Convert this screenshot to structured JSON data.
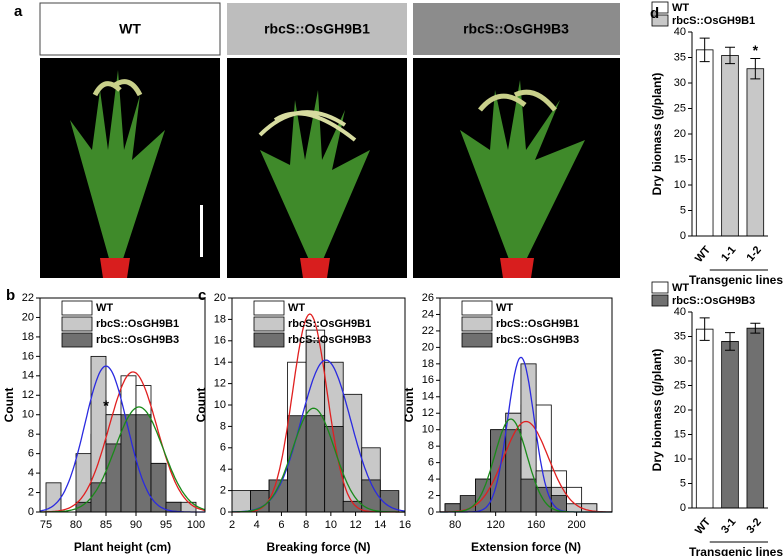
{
  "photos": {
    "panel": "a",
    "labels": [
      "WT",
      "rbcS::OsGH9B1",
      "rbcS::OsGH9B3"
    ]
  },
  "chart_data": [
    {
      "type": "histogram",
      "panel": "b",
      "xlabel": "Plant height (cm)",
      "ylabel": "Count",
      "bins": [
        75,
        77.5,
        80,
        82.5,
        85,
        87.5,
        90,
        92.5,
        95,
        97.5,
        100
      ],
      "xlim": [
        74,
        101.5
      ],
      "xticks": [
        75,
        80,
        85,
        90,
        95,
        100
      ],
      "ylim": [
        0,
        22
      ],
      "yticks": [
        0,
        2,
        4,
        6,
        8,
        10,
        12,
        14,
        16,
        18,
        20,
        22
      ],
      "legend": "upper left",
      "annotations": [
        {
          "text": "*",
          "x": 85,
          "color": "#2a2ae0"
        }
      ],
      "series": [
        {
          "name": "WT",
          "color": "#e02020",
          "fill": "#ffffff",
          "values": [
            0,
            0,
            1,
            8,
            10,
            14,
            13,
            5,
            1,
            0
          ],
          "fit": {
            "mean": 89.5,
            "sd": 4,
            "peak": 14.4
          }
        },
        {
          "name": "rbcS::OsGH9B1",
          "color": "#2a2ae0",
          "fill": "#c8c8c8",
          "values": [
            3,
            0,
            6,
            16,
            10,
            3,
            0,
            5,
            0,
            1
          ],
          "fit": {
            "mean": 85,
            "sd": 3.5,
            "peak": 15
          }
        },
        {
          "name": "rbcS::OsGH9B3",
          "color": "#1a8a1a",
          "fill": "#707070",
          "values": [
            0,
            0,
            1,
            3,
            7,
            10,
            10,
            5,
            1,
            0
          ],
          "fit": {
            "mean": 90.5,
            "sd": 4,
            "peak": 10.8
          }
        }
      ]
    },
    {
      "type": "histogram",
      "panel": "c",
      "xlabel": "Breaking force (N)",
      "ylabel": "Count",
      "bins": [
        2,
        3.5,
        5,
        6.5,
        8,
        9.5,
        11,
        12.5,
        14,
        15.5
      ],
      "xlim": [
        2,
        16
      ],
      "xticks": [
        2,
        4,
        6,
        8,
        10,
        12,
        14,
        16
      ],
      "ylim": [
        0,
        20
      ],
      "yticks": [
        0,
        2,
        4,
        6,
        8,
        10,
        12,
        14,
        16,
        18,
        20
      ],
      "legend": "upper left",
      "series": [
        {
          "name": "WT",
          "color": "#e02020",
          "fill": "#ffffff",
          "values": [
            0,
            2,
            2,
            14,
            17,
            5,
            2,
            1,
            0
          ],
          "fit": {
            "mean": 8.3,
            "sd": 1.4,
            "peak": 18.5
          }
        },
        {
          "name": "rbcS::OsGH9B1",
          "color": "#2a2ae0",
          "fill": "#c8c8c8",
          "values": [
            2,
            0,
            3,
            8,
            16,
            14,
            11,
            6,
            0
          ],
          "fit": {
            "mean": 9.6,
            "sd": 2.0,
            "peak": 14.2
          }
        },
        {
          "name": "rbcS::OsGH9B3",
          "color": "#1a8a1a",
          "fill": "#707070",
          "values": [
            0,
            2,
            3,
            9,
            9,
            8,
            1,
            3,
            2
          ],
          "fit": {
            "mean": 8.6,
            "sd": 1.7,
            "peak": 9.7
          }
        }
      ]
    },
    {
      "type": "histogram",
      "xlabel": "Extension force (N)",
      "ylabel": "Count",
      "bins": [
        70,
        85,
        100,
        115,
        130,
        145,
        160,
        175,
        190,
        205,
        220
      ],
      "xlim": [
        65,
        235
      ],
      "xticks": [
        80,
        120,
        160,
        200
      ],
      "ylim": [
        0,
        26
      ],
      "yticks": [
        0,
        2,
        4,
        6,
        8,
        10,
        12,
        14,
        16,
        18,
        20,
        22,
        24,
        26
      ],
      "legend": "upper left",
      "series": [
        {
          "name": "WT",
          "color": "#e02020",
          "fill": "#ffffff",
          "values": [
            1,
            1,
            2,
            8,
            12,
            13,
            13,
            5,
            3,
            1
          ],
          "fit": {
            "mean": 150,
            "sd": 22,
            "peak": 11
          }
        },
        {
          "name": "rbcS::OsGH9B1",
          "color": "#2a2ae0",
          "fill": "#c8c8c8",
          "values": [
            1,
            1,
            4,
            10,
            12,
            18,
            5,
            3,
            1,
            1
          ],
          "fit": {
            "mean": 145,
            "sd": 13,
            "peak": 18.8
          }
        },
        {
          "name": "rbcS::OsGH9B3",
          "color": "#1a8a1a",
          "fill": "#707070",
          "values": [
            1,
            2,
            4,
            10,
            10,
            4,
            3,
            2,
            0,
            0
          ],
          "fit": {
            "mean": 135,
            "sd": 16,
            "peak": 11.3
          }
        }
      ]
    },
    {
      "type": "bar",
      "panel": "d",
      "xlabel": "Transgenic lines",
      "ylabel": "Dry biomass (g/plant)",
      "categories": [
        "WT",
        "1-1",
        "1-2"
      ],
      "values": [
        36.5,
        35.4,
        32.8
      ],
      "errors": [
        2.3,
        1.6,
        2.0
      ],
      "colors": [
        "#ffffff",
        "#c8c8c8",
        "#c8c8c8"
      ],
      "legend": [
        {
          "name": "WT",
          "color": "#ffffff"
        },
        {
          "name": "rbcS::OsGH9B1",
          "color": "#c8c8c8"
        }
      ],
      "annotations": [
        {
          "text": "*",
          "x": "1-2"
        }
      ],
      "ylim": [
        0,
        40
      ],
      "yticks": [
        0,
        5,
        10,
        15,
        20,
        25,
        30,
        35,
        40
      ]
    },
    {
      "type": "bar",
      "xlabel": "Transgenic lines",
      "ylabel": "Dry biomass (g/plant)",
      "categories": [
        "WT",
        "3-1",
        "3-2"
      ],
      "values": [
        36.5,
        34,
        36.7
      ],
      "errors": [
        2.3,
        1.8,
        1.0
      ],
      "colors": [
        "#ffffff",
        "#707070",
        "#707070"
      ],
      "legend": [
        {
          "name": "WT",
          "color": "#ffffff"
        },
        {
          "name": "rbcS::OsGH9B3",
          "color": "#707070"
        }
      ],
      "ylim": [
        0,
        40
      ],
      "yticks": [
        0,
        5,
        10,
        15,
        20,
        25,
        30,
        35,
        40
      ]
    }
  ]
}
